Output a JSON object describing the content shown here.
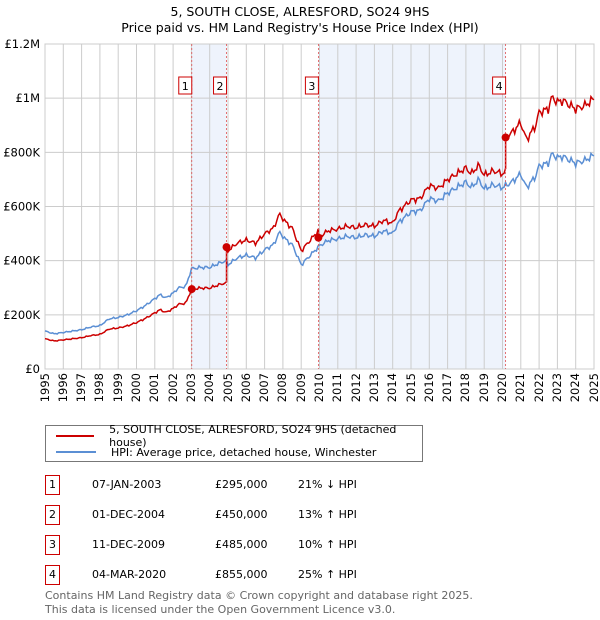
{
  "title": "5, SOUTH CLOSE, ALRESFORD, SO24 9HS",
  "subtitle": "Price paid vs. HM Land Registry's House Price Index (HPI)",
  "chart_data": {
    "type": "line",
    "ylim": [
      0,
      1200000
    ],
    "xlim": [
      1995,
      2025
    ],
    "yticks": [
      {
        "v": 0,
        "label": "£0"
      },
      {
        "v": 200000,
        "label": "£200K"
      },
      {
        "v": 400000,
        "label": "£400K"
      },
      {
        "v": 600000,
        "label": "£600K"
      },
      {
        "v": 800000,
        "label": "£800K"
      },
      {
        "v": 1000000,
        "label": "£1M"
      },
      {
        "v": 1200000,
        "label": "£1.2M"
      }
    ],
    "xticks": [
      "1995",
      "1996",
      "1997",
      "1998",
      "1999",
      "2000",
      "2001",
      "2002",
      "2003",
      "2004",
      "2005",
      "2006",
      "2007",
      "2008",
      "2009",
      "2010",
      "2011",
      "2012",
      "2013",
      "2014",
      "2015",
      "2016",
      "2017",
      "2018",
      "2019",
      "2020",
      "2021",
      "2022",
      "2023",
      "2024",
      "2025"
    ],
    "grid": true,
    "series": [
      {
        "name": "5, SOUTH CLOSE, ALRESFORD, SO24 9HS (detached house)",
        "color": "#cc0000"
      },
      {
        "name": "HPI: Average price, detached house, Winchester",
        "color": "#5b8fd4",
        "x": [
          1995,
          1995.5,
          1996,
          1996.5,
          1997,
          1997.5,
          1998,
          1998.5,
          1999,
          1999.5,
          2000,
          2000.5,
          2001,
          2001.3,
          2001.6,
          2002,
          2002.3,
          2002.7,
          2003,
          2003.5,
          2004,
          2004.5,
          2004.9,
          2005,
          2005.5,
          2006,
          2006.5,
          2007,
          2007.5,
          2007.8,
          2008.2,
          2008.5,
          2009,
          2009.5,
          2010,
          2010.5,
          2011,
          2011.5,
          2012,
          2012.5,
          2013,
          2013.5,
          2014,
          2014.3,
          2015,
          2015.5,
          2016,
          2016.5,
          2017,
          2017.5,
          2018,
          2018.3,
          2018.7,
          2019,
          2019.5,
          2020,
          2020.5,
          2021,
          2021.3,
          2021.8,
          2022,
          2022.5,
          2022.7,
          2023,
          2023.3,
          2023.7,
          2024,
          2024.5,
          2025
        ],
        "y": [
          140000,
          130000,
          135000,
          140000,
          145000,
          155000,
          160000,
          185000,
          190000,
          200000,
          215000,
          235000,
          260000,
          275000,
          262000,
          280000,
          300000,
          305000,
          370000,
          375000,
          375000,
          390000,
          400000,
          385000,
          410000,
          420000,
          410000,
          440000,
          460000,
          505000,
          475000,
          460000,
          385000,
          420000,
          455000,
          475000,
          480000,
          490000,
          485000,
          495000,
          490000,
          510000,
          500000,
          540000,
          580000,
          585000,
          630000,
          620000,
          650000,
          670000,
          690000,
          670000,
          700000,
          665000,
          680000,
          670000,
          690000,
          720000,
          670000,
          710000,
          750000,
          760000,
          795000,
          780000,
          785000,
          770000,
          760000,
          770000,
          790000
        ]
      }
    ],
    "sales": [
      {
        "n": "1",
        "x": 2003.02,
        "date": "07-JAN-2003",
        "price": 295000,
        "price_label": "£295,000",
        "hpi": "21% ↓ HPI"
      },
      {
        "n": "2",
        "x": 2004.92,
        "date": "01-DEC-2004",
        "price": 450000,
        "price_label": "£450,000",
        "hpi": "13% ↑ HPI"
      },
      {
        "n": "3",
        "x": 2009.94,
        "date": "11-DEC-2009",
        "price": 485000,
        "price_label": "£485,000",
        "hpi": "10% ↑ HPI"
      },
      {
        "n": "4",
        "x": 2020.17,
        "date": "04-MAR-2020",
        "price": 855000,
        "price_label": "£855,000",
        "hpi": "25% ↑ HPI"
      }
    ]
  },
  "footer": [
    "Contains HM Land Registry data © Crown copyright and database right 2025.",
    "This data is licensed under the Open Government Licence v3.0."
  ]
}
